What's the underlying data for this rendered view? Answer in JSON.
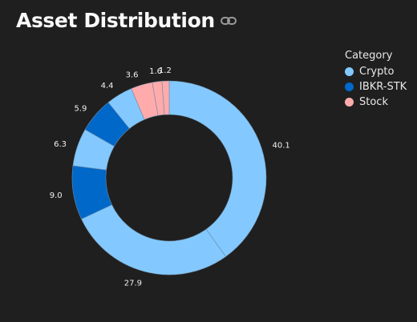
{
  "header": {
    "title": "Asset Distribution",
    "link_icon": "link-icon"
  },
  "legend": {
    "title": "Category",
    "items": [
      {
        "label": "Crypto",
        "color": "#83c9ff"
      },
      {
        "label": "IBKR-STK",
        "color": "#0068c9"
      },
      {
        "label": "Stock",
        "color": "#ffabab"
      }
    ]
  },
  "chart_data": {
    "type": "pie",
    "hole": true,
    "slices": [
      {
        "category": "Crypto",
        "value": 40.1,
        "label": "40.1",
        "color": "#83c9ff"
      },
      {
        "category": "Crypto",
        "value": 27.9,
        "label": "27.9",
        "color": "#83c9ff"
      },
      {
        "category": "IBKR-STK",
        "value": 9.0,
        "label": "9.0",
        "color": "#0068c9"
      },
      {
        "category": "Crypto",
        "value": 6.3,
        "label": "6.3",
        "color": "#83c9ff"
      },
      {
        "category": "IBKR-STK",
        "value": 5.9,
        "label": "5.9",
        "color": "#0068c9"
      },
      {
        "category": "Crypto",
        "value": 4.4,
        "label": "4.4",
        "color": "#83c9ff"
      },
      {
        "category": "Stock",
        "value": 3.6,
        "label": "3.6",
        "color": "#ffabab"
      },
      {
        "category": "Stock",
        "value": 1.6,
        "label": "1.6",
        "color": "#ffabab"
      },
      {
        "category": "Stock",
        "value": 1.2,
        "label": "1.2",
        "color": "#ffabab"
      }
    ]
  }
}
